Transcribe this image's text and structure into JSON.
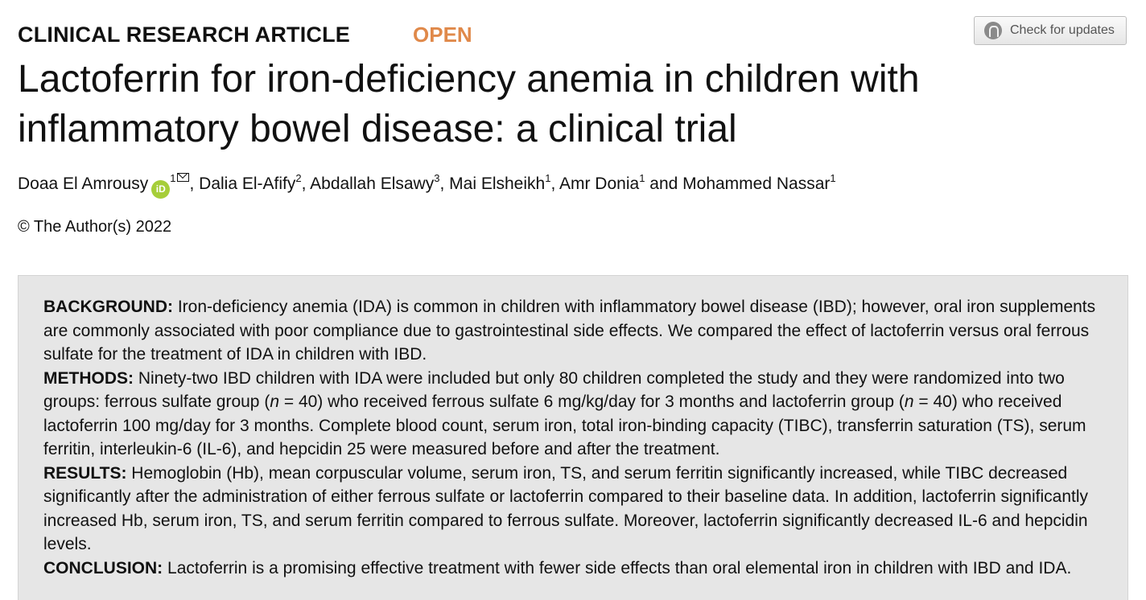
{
  "header": {
    "article_type": "CLINICAL RESEARCH ARTICLE",
    "open_access_label": "OPEN",
    "check_updates_label": "Check for updates",
    "check_updates_icon": "check-updates-icon"
  },
  "title": "Lactoferrin for iron-deficiency anemia in children with inflammatory bowel disease: a clinical trial",
  "authors": [
    {
      "name": "Doaa El Amrousy",
      "affiliation": "1",
      "orcid": true,
      "corresponding": true
    },
    {
      "name": "Dalia El-Afify",
      "affiliation": "2"
    },
    {
      "name": "Abdallah Elsawy",
      "affiliation": "3"
    },
    {
      "name": "Mai Elsheikh",
      "affiliation": "1"
    },
    {
      "name": "Amr Donia",
      "affiliation": "1"
    },
    {
      "name": "Mohammed Nassar",
      "affiliation": "1"
    }
  ],
  "author_separators": {
    "comma": ",",
    "and": "and"
  },
  "copyright": "© The Author(s) 2022",
  "abstract": {
    "background": {
      "label": "BACKGROUND:",
      "text": "Iron-deficiency anemia (IDA) is common in children with inflammatory bowel disease (IBD); however, oral iron supplements are commonly associated with poor compliance due to gastrointestinal side effects. We compared the effect of lactoferrin versus oral ferrous sulfate for the treatment of IDA in children with IBD."
    },
    "methods": {
      "label": "METHODS:",
      "text_1": "Ninety-two IBD children with IDA were included but only 80 children completed the study and they were randomized into two groups: ferrous sulfate group (",
      "n_symbol": "n",
      "text_2": " = 40) who received ferrous sulfate 6 mg/kg/day for 3 months and lactoferrin group (",
      "text_3": " = 40) who received lactoferrin 100 mg/day for 3 months. Complete blood count, serum iron, total iron-binding capacity (TIBC), transferrin saturation (TS), serum ferritin, interleukin-6 (IL-6), and hepcidin 25 were measured before and after the treatment."
    },
    "results": {
      "label": "RESULTS:",
      "text": "Hemoglobin (Hb), mean corpuscular volume, serum iron, TS, and serum ferritin significantly increased, while TIBC decreased significantly after the administration of either ferrous sulfate or lactoferrin compared to their baseline data. In addition, lactoferrin significantly increased Hb, serum iron, TS, and serum ferritin compared to ferrous sulfate. Moreover, lactoferrin significantly decreased IL-6 and hepcidin levels."
    },
    "conclusion": {
      "label": "CONCLUSION:",
      "text": "Lactoferrin is a promising effective treatment with fewer side effects than oral elemental iron in children with IBD and IDA."
    }
  }
}
